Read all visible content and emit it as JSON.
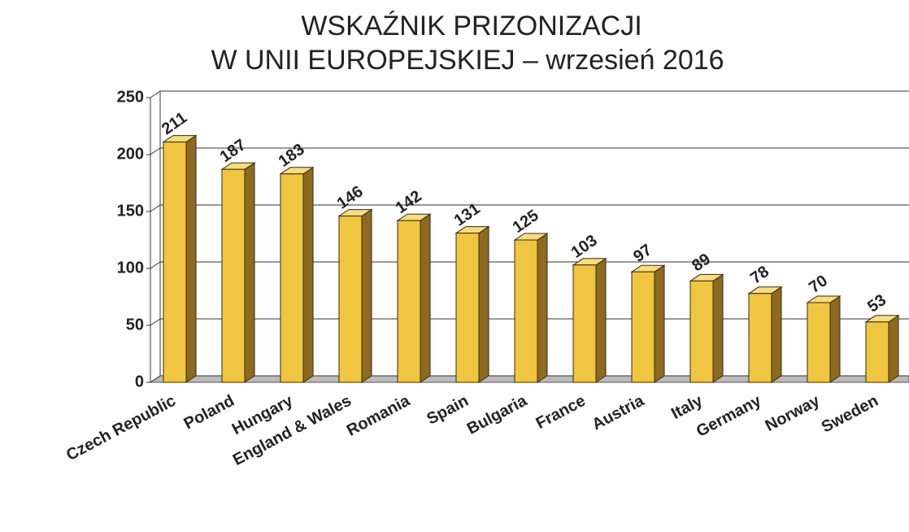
{
  "chart_data": {
    "type": "bar3d",
    "title": [
      "WSKAŹNIK PRIZONIZACJI",
      "W UNII EUROPEJSKIEJ – wrzesień 2016"
    ],
    "categories": [
      "Czech Republic",
      "Poland",
      "Hungary",
      "England & Wales",
      "Romania",
      "Spain",
      "Bulgaria",
      "France",
      "Austria",
      "Italy",
      "Germany",
      "Norway",
      "Sweden"
    ],
    "values": [
      211,
      187,
      183,
      146,
      142,
      131,
      125,
      103,
      97,
      89,
      78,
      70,
      53
    ],
    "color": "#f0c640",
    "ylim": [
      0,
      250
    ],
    "yticks": [
      0,
      50,
      100,
      150,
      200,
      250
    ],
    "grid": true
  }
}
